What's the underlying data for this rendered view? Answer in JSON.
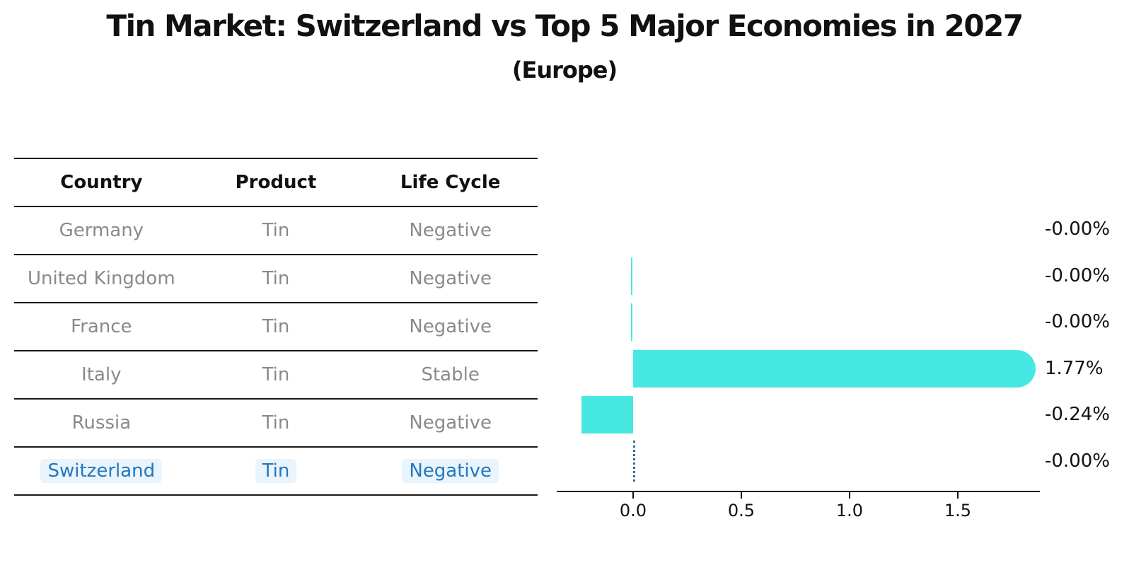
{
  "title": "Tin Market: Switzerland vs Top 5 Major Economies in 2027",
  "subtitle": "(Europe)",
  "table": {
    "headers": [
      "Country",
      "Product",
      "Life Cycle"
    ],
    "rows": [
      {
        "country": "Germany",
        "product": "Tin",
        "life_cycle": "Negative",
        "highlighted": false
      },
      {
        "country": "United Kingdom",
        "product": "Tin",
        "life_cycle": "Negative",
        "highlighted": false
      },
      {
        "country": "France",
        "product": "Tin",
        "life_cycle": "Negative",
        "highlighted": false
      },
      {
        "country": "Italy",
        "product": "Tin",
        "life_cycle": "Stable",
        "highlighted": false
      },
      {
        "country": "Russia",
        "product": "Tin",
        "life_cycle": "Negative",
        "highlighted": false
      },
      {
        "country": "Switzerland",
        "product": "Tin",
        "life_cycle": "Negative",
        "highlighted": true
      }
    ]
  },
  "chart_data": {
    "type": "bar",
    "orientation": "horizontal",
    "title": "Tin Market: Switzerland vs Top 5 Major Economies in 2027 (Europe)",
    "categories": [
      "Germany",
      "United Kingdom",
      "France",
      "Italy",
      "Russia",
      "Switzerland"
    ],
    "values": [
      -0.0,
      -0.0,
      -0.0,
      1.77,
      -0.24,
      -0.0
    ],
    "value_labels": [
      "-0.00%",
      "-0.00%",
      "-0.00%",
      "1.77%",
      "-0.24%",
      "-0.00%"
    ],
    "bar_styles": [
      "none",
      "thin",
      "thin",
      "rounded",
      "rect",
      "dotted"
    ],
    "x_ticks": [
      0.0,
      0.5,
      1.0,
      1.5
    ],
    "x_tick_labels": [
      "0.0",
      "0.5",
      "1.0",
      "1.5"
    ],
    "xlim": [
      -0.35,
      1.88
    ],
    "xlabel": "",
    "ylabel": "",
    "grid": false,
    "legend": false,
    "bar_color": "#47e8e1",
    "highlight_line_color": "#35689b",
    "highlight_text_color": "#2478be",
    "highlight_category": "Switzerland"
  }
}
